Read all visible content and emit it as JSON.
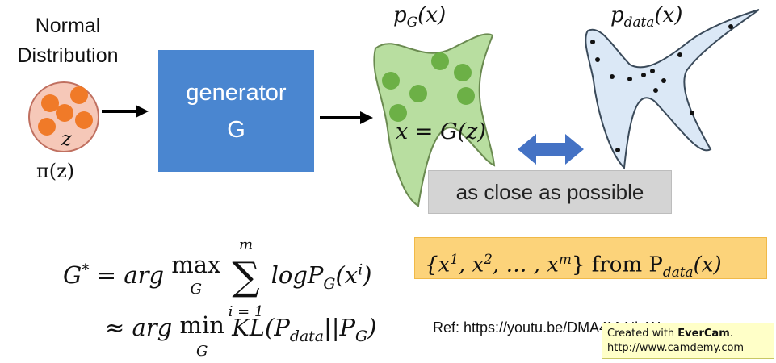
{
  "normal": {
    "line1": "Normal",
    "line2": "Distribution",
    "z": "z",
    "pi": "π(z)"
  },
  "generator": {
    "line1": "generator",
    "line2": "G"
  },
  "pg_label": {
    "p": "p",
    "sub": "G",
    "rest": "(x)"
  },
  "pdata_label": {
    "p": "p",
    "sub": "data",
    "rest": "(x)"
  },
  "x_eq": "x = G(z)",
  "close": "as close as possible",
  "formula1": {
    "lhs": "G",
    "sup": "*",
    "eq": " = arg ",
    "max": "max",
    "maxsub": "G",
    "sum_top": "m",
    "sum_bottom": "i = 1",
    "body": "logP",
    "bsub": "G",
    "x": "(x",
    "xsup": "i",
    "close": ")"
  },
  "formula2": {
    "approx": "≈ arg ",
    "min": "min",
    "minsub": "G",
    "kl": "KL(P",
    "ksub": "data",
    "mid": "||P",
    "psub": "G",
    "close": ")"
  },
  "samples": {
    "open": "{x",
    "s1": "1",
    "c1": ", x",
    "s2": "2",
    "c2": ", … , x",
    "sm": "m",
    "close": "} from P",
    "psub": "data",
    "tail": "(x)"
  },
  "ref": "Ref: https://youtu.be/DMA4MrNieWs",
  "evercam": {
    "line1a": "Created with ",
    "line1b": "EverCam",
    "line1c": ".",
    "line2": "http://www.camdemy.com"
  },
  "colors": {
    "generator": "#4a86d0",
    "pg_fill": "#b8dea0",
    "pdata_fill": "#dbe8f6",
    "dot_green": "#6cb046",
    "dot_orange": "#f07a28",
    "circle_fill": "#f6c8b8",
    "arrow_blue": "#4472c4",
    "sample_box": "#fcd37a"
  }
}
